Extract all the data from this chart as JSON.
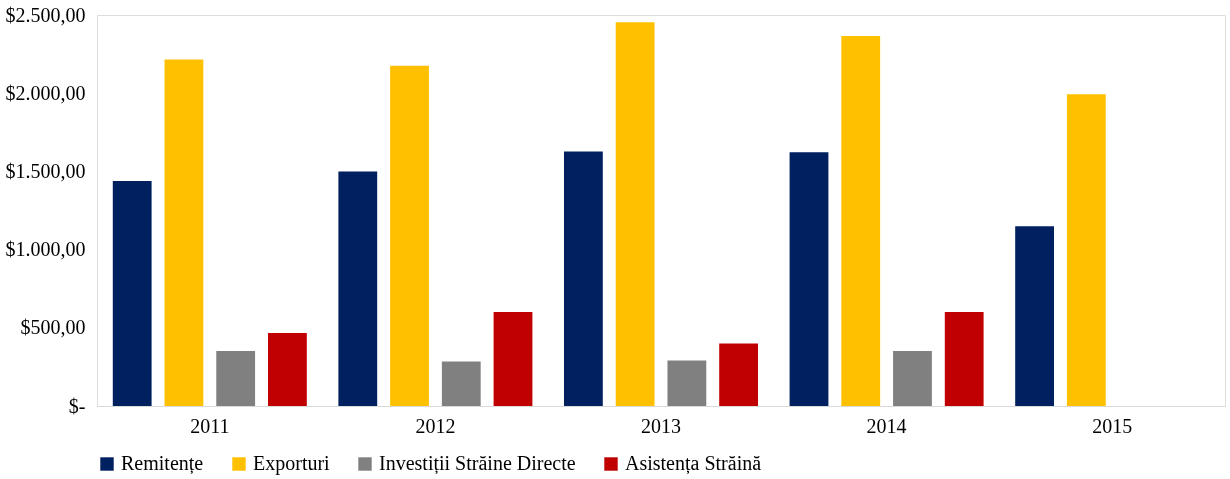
{
  "chart_data": {
    "type": "bar",
    "categories": [
      "2011",
      "2012",
      "2013",
      "2014",
      "2015"
    ],
    "series": [
      {
        "name": "Remitențe",
        "color": "#002060",
        "values": [
          1439,
          1500,
          1628,
          1622,
          1149
        ]
      },
      {
        "name": "Exporturi",
        "color": "#ffc000",
        "values": [
          2216,
          2176,
          2453,
          2365,
          1993
        ]
      },
      {
        "name": "Investiții Străine Directe",
        "color": "#808080",
        "values": [
          351,
          284,
          291,
          351,
          null
        ]
      },
      {
        "name": "Asistența Străină",
        "color": "#c00000",
        "values": [
          466,
          601,
          399,
          601,
          null
        ]
      }
    ],
    "ylim": [
      0,
      2500
    ],
    "yticks": [
      {
        "value": 0,
        "label": "$-"
      },
      {
        "value": 500,
        "label": "$500,00"
      },
      {
        "value": 1000,
        "label": "$1.000,00"
      },
      {
        "value": 1500,
        "label": "$1.500,00"
      },
      {
        "value": 2000,
        "label": "$2.000,00"
      },
      {
        "value": 2500,
        "label": "$2.500,00"
      }
    ],
    "grid": false,
    "legend": "bottom"
  }
}
